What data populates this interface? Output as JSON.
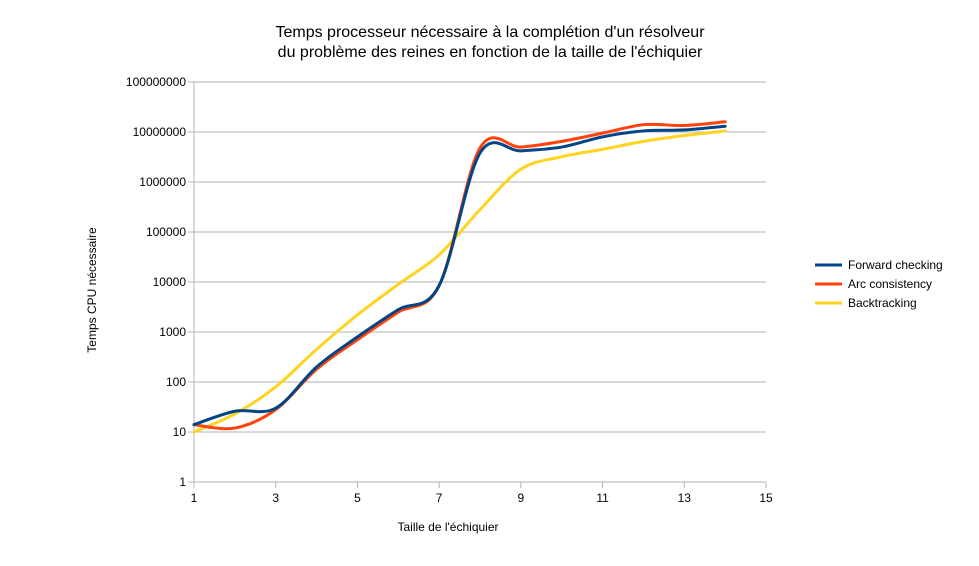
{
  "chart_data": {
    "type": "line",
    "title": [
      "Temps processeur nécessaire à la complétion d'un résolveur",
      "du problème des reines en fonction de la taille de l'échiquier"
    ],
    "xlabel": "Taille de l'échiquier",
    "ylabel": "Temps CPU nécessaire",
    "x_scale": "linear",
    "y_scale": "log",
    "xlim": [
      1,
      15
    ],
    "ylim": [
      1,
      100000000
    ],
    "x_ticks": [
      "1",
      "3",
      "5",
      "7",
      "9",
      "11",
      "13",
      "15"
    ],
    "y_ticks": [
      "1",
      "10",
      "100",
      "1000",
      "10000",
      "100000",
      "1000000",
      "10000000",
      "100000000"
    ],
    "grid": "horizontal",
    "legend_position": "right",
    "x": [
      1,
      2,
      3,
      4,
      5,
      6,
      7,
      8,
      9,
      10,
      11,
      12,
      13,
      14
    ],
    "series": [
      {
        "name": "Forward checking",
        "color": "#004586",
        "values": [
          14,
          26,
          30,
          200,
          800,
          2800,
          8500,
          3800000,
          4200000,
          5000000,
          8000000,
          10500000,
          11000000,
          13000000
        ]
      },
      {
        "name": "Arc consistency",
        "color": "#ff420e",
        "values": [
          14,
          12,
          28,
          180,
          700,
          2500,
          8500,
          4800000,
          5000000,
          6500000,
          9500000,
          14000000,
          13500000,
          16000000
        ]
      },
      {
        "name": "Backtracking",
        "color": "#ffd320",
        "values": [
          10,
          23,
          80,
          450,
          2200,
          9000,
          35000,
          280000,
          1800000,
          3200000,
          4500000,
          6500000,
          8500000,
          10500000
        ]
      }
    ]
  }
}
